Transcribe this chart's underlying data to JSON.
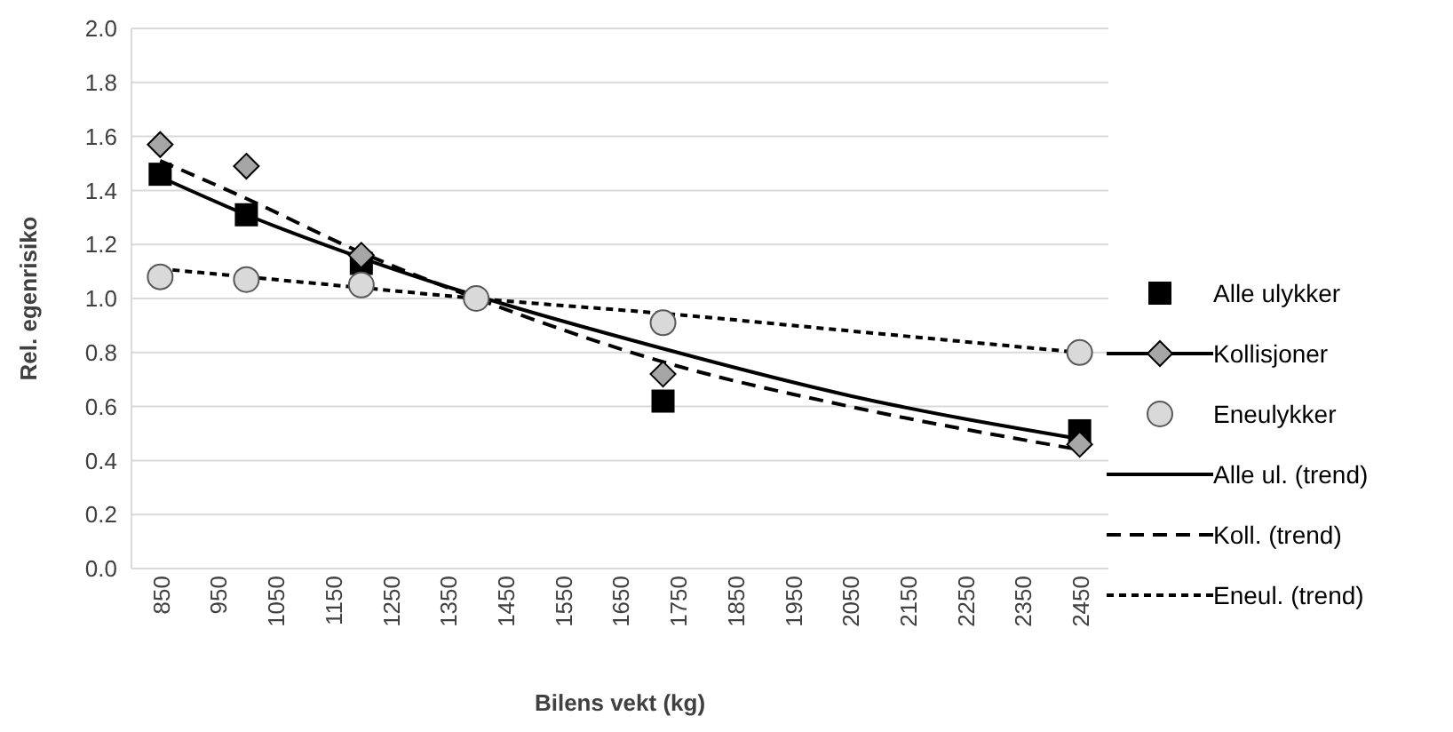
{
  "chart_data": {
    "type": "scatter",
    "xlabel": "Bilens vekt (kg)",
    "ylabel": "Rel. egenrisiko",
    "xlim": [
      800,
      2500
    ],
    "xticks": [
      850,
      950,
      1050,
      1150,
      1250,
      1350,
      1450,
      1550,
      1650,
      1750,
      1850,
      1950,
      2050,
      2150,
      2250,
      2350,
      2450
    ],
    "ylim": [
      0,
      2
    ],
    "yticks": [
      {
        "value": 0,
        "label": "0.0"
      },
      {
        "value": 0.2,
        "label": "0.2"
      },
      {
        "value": 0.4,
        "label": "0.4"
      },
      {
        "value": 0.6,
        "label": "0.6"
      },
      {
        "value": 0.8,
        "label": "0.8"
      },
      {
        "value": 1,
        "label": "1.0"
      },
      {
        "value": 1.2,
        "label": "1.2"
      },
      {
        "value": 1.4,
        "label": "1.4"
      },
      {
        "value": 1.6,
        "label": "1.6"
      },
      {
        "value": 1.8,
        "label": "1.8"
      },
      {
        "value": 2,
        "label": "2.0"
      }
    ],
    "grid": "y",
    "legend": "right",
    "series": [
      {
        "name": "Alle ulykker",
        "marker": "square",
        "color": "#000000",
        "x": [
          850,
          1000,
          1200,
          1400,
          1725,
          2450
        ],
        "values": [
          1.46,
          1.31,
          1.13,
          null,
          0.62,
          0.51
        ]
      },
      {
        "name": "Kollisjoner",
        "marker": "diamond",
        "color": "#a6a6a6",
        "x": [
          850,
          1000,
          1200,
          1400,
          1725,
          2450
        ],
        "values": [
          1.57,
          1.49,
          1.16,
          null,
          0.72,
          0.46
        ]
      },
      {
        "name": "Eneulykker",
        "marker": "circle",
        "color": "#d9d9d9",
        "x": [
          850,
          1000,
          1200,
          1400,
          1725,
          2450
        ],
        "values": [
          1.08,
          1.07,
          1.05,
          1.0,
          0.91,
          0.8
        ]
      },
      {
        "name": "Alle ul. (trend)",
        "type": "line",
        "line_style": "solid",
        "color": "#000000",
        "x": [
          850,
          1000,
          1200,
          1750,
          2050,
          2450
        ],
        "values": [
          1.45,
          1.31,
          1.15,
          0.8,
          0.64,
          0.48
        ]
      },
      {
        "name": "Koll. (trend)",
        "type": "line",
        "line_style": "dashed",
        "color": "#000000",
        "x": [
          850,
          1000,
          1200,
          1400,
          1750,
          2050,
          2450
        ],
        "values": [
          1.51,
          1.37,
          1.17,
          1.0,
          0.75,
          0.6,
          0.44
        ]
      },
      {
        "name": "Eneul. (trend)",
        "type": "line",
        "line_style": "dotted",
        "color": "#000000",
        "x": [
          850,
          1200,
          1400,
          1750,
          2050,
          2450
        ],
        "values": [
          1.11,
          1.04,
          1.0,
          0.94,
          0.88,
          0.8
        ]
      }
    ]
  }
}
